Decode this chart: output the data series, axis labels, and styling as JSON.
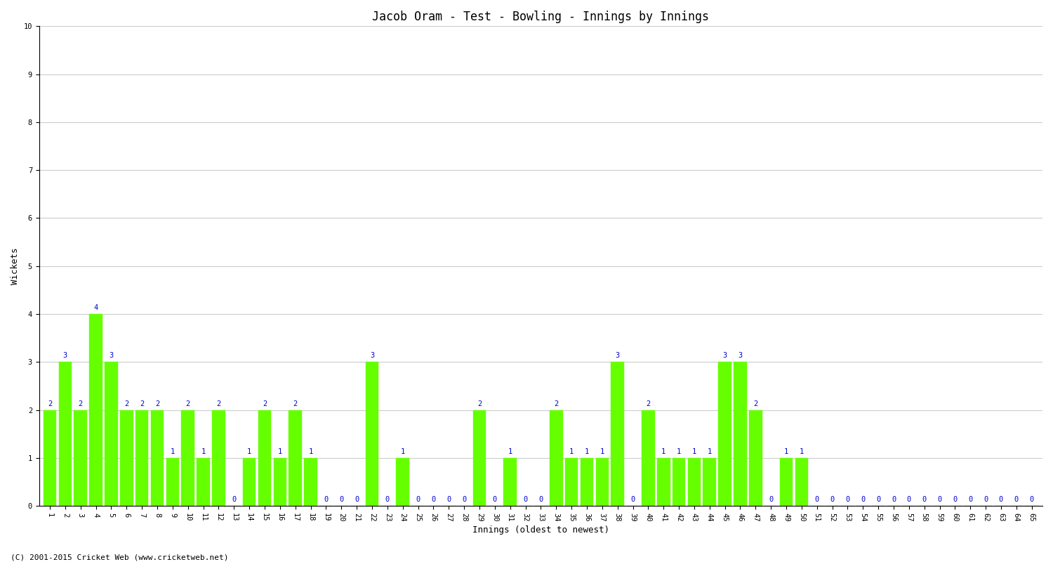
{
  "title": "Jacob Oram - Test - Bowling - Innings by Innings",
  "xlabel": "Innings (oldest to newest)",
  "ylabel": "Wickets",
  "background_color": "#ffffff",
  "plot_bg_color": "#ffffff",
  "bar_color": "#66ff00",
  "bar_edge_color": "#66ff00",
  "label_color": "#0000cc",
  "grid_color": "#cccccc",
  "title_fontsize": 12,
  "axis_fontsize": 9,
  "label_fontsize": 7.5,
  "tick_fontsize": 7.5,
  "ylim": [
    0,
    10
  ],
  "yticks": [
    0,
    1,
    2,
    3,
    4,
    5,
    6,
    7,
    8,
    9,
    10
  ],
  "innings": [
    1,
    2,
    3,
    4,
    5,
    6,
    7,
    8,
    9,
    10,
    11,
    12,
    13,
    14,
    15,
    16,
    17,
    18,
    19,
    20,
    21,
    22,
    23,
    24,
    25,
    26,
    27,
    28,
    29,
    30,
    31,
    32,
    33,
    34,
    35,
    36,
    37,
    38,
    39,
    40,
    41,
    42,
    43,
    44,
    45,
    46,
    47,
    48,
    49,
    50,
    51,
    52,
    53,
    54,
    55,
    56,
    57,
    58,
    59,
    60,
    61,
    62,
    63,
    64,
    65
  ],
  "wickets": [
    2,
    3,
    2,
    4,
    3,
    2,
    2,
    2,
    1,
    2,
    1,
    2,
    0,
    1,
    2,
    1,
    2,
    1,
    0,
    0,
    0,
    3,
    0,
    1,
    0,
    0,
    0,
    0,
    2,
    0,
    1,
    0,
    0,
    2,
    1,
    1,
    1,
    3,
    0,
    2,
    1,
    1,
    1,
    1,
    3,
    3,
    2,
    0,
    1,
    1,
    0,
    0,
    0,
    0,
    0,
    0,
    0,
    0,
    0,
    0,
    0,
    0,
    0,
    0,
    0
  ],
  "footer": "(C) 2001-2015 Cricket Web (www.cricketweb.net)"
}
